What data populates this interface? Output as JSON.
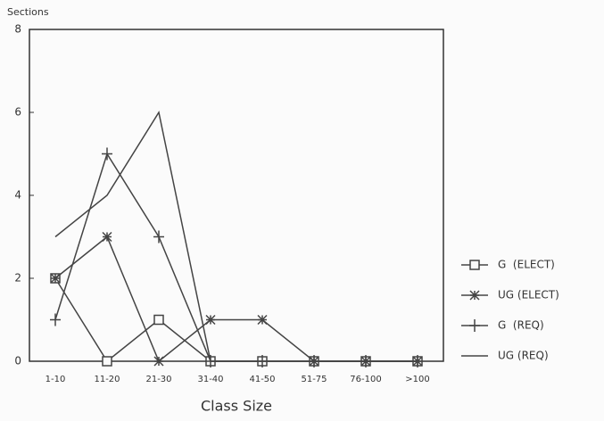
{
  "chart_data": {
    "type": "line",
    "y_label": "Sections",
    "x_label": "Class Size",
    "categories": [
      "1-10",
      "11-20",
      "21-30",
      "31-40",
      "41-50",
      "51-75",
      "76-100",
      ">100"
    ],
    "ylim": [
      0,
      8
    ],
    "yticks": [
      0,
      2,
      4,
      6,
      8
    ],
    "series": [
      {
        "name": "G  (ELECT)",
        "color": "#444444",
        "marker": "square",
        "values": [
          2,
          0,
          1,
          0,
          0,
          0,
          0,
          0
        ]
      },
      {
        "name": "UG (ELECT)",
        "color": "#444444",
        "marker": "star",
        "values": [
          2,
          3,
          0,
          1,
          1,
          0,
          0,
          0
        ]
      },
      {
        "name": "G  (REQ)",
        "color": "#444444",
        "marker": "plus",
        "values": [
          1,
          5,
          3,
          0,
          0,
          0,
          0,
          0
        ]
      },
      {
        "name": "UG (REQ)",
        "color": "#444444",
        "marker": "none",
        "values": [
          3,
          4,
          6,
          0,
          0,
          0,
          0,
          0
        ]
      }
    ]
  }
}
